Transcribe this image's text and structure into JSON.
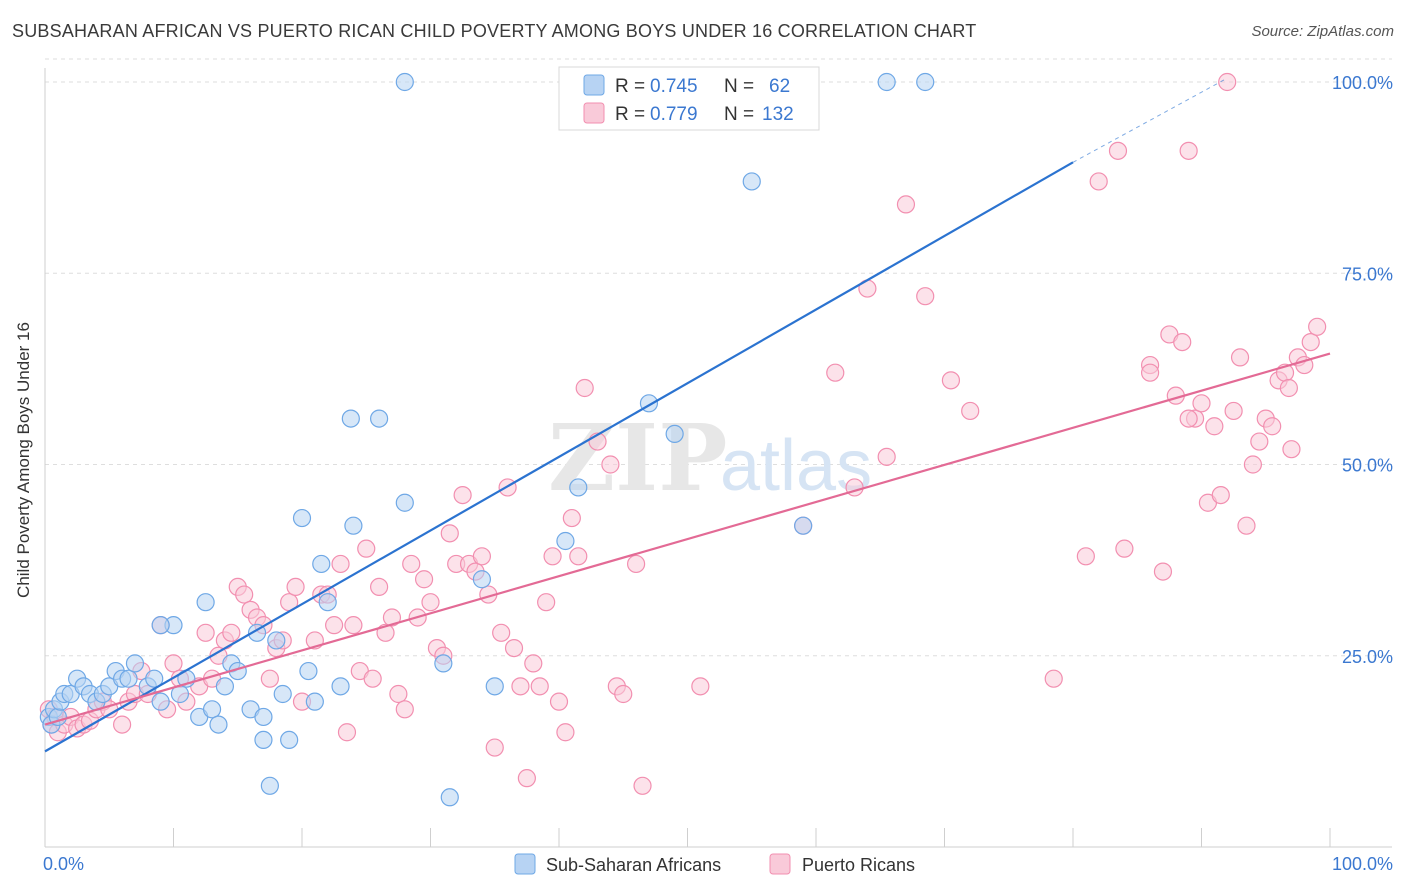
{
  "title": "SUBSAHARAN AFRICAN VS PUERTO RICAN CHILD POVERTY AMONG BOYS UNDER 16 CORRELATION CHART",
  "source": "Source: ZipAtlas.com",
  "watermark": {
    "zip": "ZIP",
    "atlas": "atlas"
  },
  "colors": {
    "blue": "#6fa8e6",
    "blue_fill": "#b7d3f3",
    "blue_line": "#2b73d0",
    "pink": "#f28fb0",
    "pink_fill": "#f9cad9",
    "pink_line": "#e36a95",
    "value_text": "#3b78d0",
    "grid": "#dedede"
  },
  "legend": {
    "items": [
      {
        "r_label": "R =",
        "r_value": "0.745",
        "n_label": "N =",
        "n_value": "62",
        "color": "blue"
      },
      {
        "r_label": "R =",
        "r_value": "0.779",
        "n_label": "N =",
        "n_value": "132",
        "color": "pink"
      }
    ]
  },
  "chart_data": {
    "type": "scatter",
    "title": "SUBSAHARAN AFRICAN VS PUERTO RICAN CHILD POVERTY AMONG BOYS UNDER 16 CORRELATION CHART",
    "xlabel": "",
    "ylabel": "Child Poverty Among Boys Under 16",
    "xlim": [
      0,
      100
    ],
    "ylim": [
      0,
      104
    ],
    "x_tick_labels": [
      {
        "value": 0,
        "label": "0.0%"
      },
      {
        "value": 100,
        "label": "100.0%"
      }
    ],
    "y_tick_labels": [
      {
        "value": 25,
        "label": "25.0%"
      },
      {
        "value": 50,
        "label": "50.0%"
      },
      {
        "value": 75,
        "label": "75.0%"
      },
      {
        "value": 100,
        "label": "100.0%"
      }
    ],
    "x_minor_ticks": [
      10,
      20,
      30,
      40,
      50,
      60,
      70,
      80,
      90,
      100
    ],
    "series": [
      {
        "name": "Sub-Saharan Africans",
        "color": "blue",
        "R": 0.745,
        "N": 62,
        "trend": {
          "x0": 0,
          "y0": 12.5,
          "x1": 80,
          "y1": 89.5,
          "dash_to_x": 92,
          "dash_to_y": 100.5
        },
        "points": [
          [
            0.3,
            17
          ],
          [
            0.5,
            16
          ],
          [
            0.7,
            18
          ],
          [
            1.0,
            17
          ],
          [
            1.2,
            19
          ],
          [
            1.5,
            20
          ],
          [
            2.0,
            20
          ],
          [
            2.5,
            22
          ],
          [
            3.0,
            21
          ],
          [
            3.5,
            20
          ],
          [
            4.0,
            19
          ],
          [
            4.5,
            20
          ],
          [
            5.0,
            21
          ],
          [
            5.5,
            23
          ],
          [
            6.0,
            22
          ],
          [
            6.5,
            22
          ],
          [
            7.0,
            24
          ],
          [
            8.0,
            21
          ],
          [
            8.5,
            22
          ],
          [
            9.0,
            19
          ],
          [
            10.0,
            29
          ],
          [
            10.5,
            20
          ],
          [
            11.0,
            22
          ],
          [
            12.0,
            17
          ],
          [
            12.5,
            32
          ],
          [
            13.0,
            18
          ],
          [
            13.5,
            16
          ],
          [
            14.0,
            21
          ],
          [
            14.5,
            24
          ],
          [
            15.0,
            23
          ],
          [
            16.0,
            18
          ],
          [
            17.0,
            17
          ],
          [
            16.5,
            28
          ],
          [
            17.0,
            14
          ],
          [
            18.0,
            27
          ],
          [
            18.5,
            20
          ],
          [
            19.0,
            14
          ],
          [
            17.5,
            8
          ],
          [
            20.0,
            43
          ],
          [
            20.5,
            23
          ],
          [
            21.0,
            19
          ],
          [
            21.5,
            37
          ],
          [
            22.0,
            32
          ],
          [
            23.0,
            21
          ],
          [
            24.0,
            42
          ],
          [
            23.8,
            56
          ],
          [
            26.0,
            56
          ],
          [
            28.0,
            45
          ],
          [
            28.0,
            100
          ],
          [
            31.0,
            24
          ],
          [
            31.5,
            6.5
          ],
          [
            34.0,
            35
          ],
          [
            35.0,
            21
          ],
          [
            40.5,
            40
          ],
          [
            41.5,
            47
          ],
          [
            47.0,
            58
          ],
          [
            49.0,
            54
          ],
          [
            55.0,
            87
          ],
          [
            59.0,
            42
          ],
          [
            65.5,
            100
          ],
          [
            68.5,
            100
          ],
          [
            9.0,
            29
          ]
        ]
      },
      {
        "name": "Puerto Ricans",
        "color": "pink",
        "R": 0.779,
        "N": 132,
        "trend": {
          "x0": 0,
          "y0": 16,
          "x1": 100,
          "y1": 64.5
        },
        "points": [
          [
            0.3,
            18
          ],
          [
            0.5,
            16
          ],
          [
            0.8,
            17
          ],
          [
            1.0,
            15
          ],
          [
            1.5,
            16
          ],
          [
            2.0,
            17
          ],
          [
            2.5,
            15.5
          ],
          [
            3.0,
            16
          ],
          [
            3.5,
            16.5
          ],
          [
            4.0,
            18
          ],
          [
            4.5,
            19
          ],
          [
            5.0,
            18
          ],
          [
            6.0,
            16
          ],
          [
            6.5,
            19
          ],
          [
            7.0,
            20
          ],
          [
            7.5,
            23
          ],
          [
            8.0,
            20
          ],
          [
            9.0,
            29
          ],
          [
            9.5,
            18
          ],
          [
            10.0,
            24
          ],
          [
            10.5,
            22
          ],
          [
            11.0,
            19
          ],
          [
            12.0,
            21
          ],
          [
            12.5,
            28
          ],
          [
            13.0,
            22
          ],
          [
            13.5,
            25
          ],
          [
            14.0,
            27
          ],
          [
            14.5,
            28
          ],
          [
            15.0,
            34
          ],
          [
            15.5,
            33
          ],
          [
            16.0,
            31
          ],
          [
            16.5,
            30
          ],
          [
            17.0,
            29
          ],
          [
            17.5,
            22
          ],
          [
            18.0,
            26
          ],
          [
            18.5,
            27
          ],
          [
            19.0,
            32
          ],
          [
            19.5,
            34
          ],
          [
            20.0,
            19
          ],
          [
            21.0,
            27
          ],
          [
            21.5,
            33
          ],
          [
            22.0,
            33
          ],
          [
            22.5,
            29
          ],
          [
            23.0,
            37
          ],
          [
            23.5,
            15
          ],
          [
            24.0,
            29
          ],
          [
            24.5,
            23
          ],
          [
            25.0,
            39
          ],
          [
            25.5,
            22
          ],
          [
            26.0,
            34
          ],
          [
            26.5,
            28
          ],
          [
            27.0,
            30
          ],
          [
            27.5,
            20
          ],
          [
            28.0,
            18
          ],
          [
            28.5,
            37
          ],
          [
            29.0,
            30
          ],
          [
            29.5,
            35
          ],
          [
            30.0,
            32
          ],
          [
            30.5,
            26
          ],
          [
            31.0,
            25
          ],
          [
            31.5,
            41
          ],
          [
            32.0,
            37
          ],
          [
            32.5,
            46
          ],
          [
            33.0,
            37
          ],
          [
            33.5,
            36
          ],
          [
            34.0,
            38
          ],
          [
            34.5,
            33
          ],
          [
            35.0,
            13
          ],
          [
            35.5,
            28
          ],
          [
            36.0,
            47
          ],
          [
            36.5,
            26
          ],
          [
            37.0,
            21
          ],
          [
            37.5,
            9
          ],
          [
            38.0,
            24
          ],
          [
            38.5,
            21
          ],
          [
            39.0,
            32
          ],
          [
            39.5,
            38
          ],
          [
            40.0,
            19
          ],
          [
            40.5,
            15
          ],
          [
            41.0,
            43
          ],
          [
            41.5,
            38
          ],
          [
            42.0,
            60
          ],
          [
            43.0,
            53
          ],
          [
            44.0,
            50
          ],
          [
            44.5,
            21
          ],
          [
            45.0,
            20
          ],
          [
            46.0,
            37
          ],
          [
            46.5,
            8
          ],
          [
            51.0,
            21
          ],
          [
            59.0,
            42
          ],
          [
            61.5,
            62
          ],
          [
            63.0,
            47
          ],
          [
            64.0,
            73
          ],
          [
            65.5,
            51
          ],
          [
            67.0,
            84
          ],
          [
            68.5,
            72
          ],
          [
            70.5,
            61
          ],
          [
            72.0,
            57
          ],
          [
            78.5,
            22
          ],
          [
            81.0,
            38
          ],
          [
            82.0,
            87
          ],
          [
            83.5,
            91
          ],
          [
            84.0,
            39
          ],
          [
            86.0,
            63
          ],
          [
            87.0,
            36
          ],
          [
            87.5,
            67
          ],
          [
            88.0,
            59
          ],
          [
            88.5,
            66
          ],
          [
            89.0,
            91
          ],
          [
            89.5,
            56
          ],
          [
            90.0,
            58
          ],
          [
            90.5,
            45
          ],
          [
            91.0,
            55
          ],
          [
            91.5,
            46
          ],
          [
            92.0,
            100
          ],
          [
            92.5,
            57
          ],
          [
            93.0,
            64
          ],
          [
            93.5,
            42
          ],
          [
            94.0,
            50
          ],
          [
            94.5,
            53
          ],
          [
            95.0,
            56
          ],
          [
            95.5,
            55
          ],
          [
            96.0,
            61
          ],
          [
            96.5,
            62
          ],
          [
            97.0,
            52
          ],
          [
            97.5,
            64
          ],
          [
            98.0,
            63
          ],
          [
            98.5,
            66
          ],
          [
            99.0,
            68
          ],
          [
            96.8,
            60
          ],
          [
            86.0,
            62
          ],
          [
            89.0,
            56
          ]
        ]
      }
    ],
    "legend_bottom": [
      "Sub-Saharan Africans",
      "Puerto Ricans"
    ],
    "grid": true,
    "legend_position": "top-center"
  }
}
